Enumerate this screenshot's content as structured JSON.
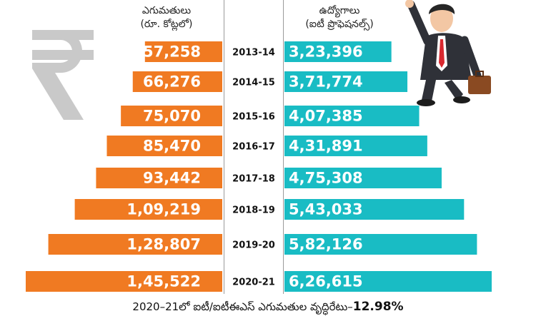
{
  "headers": {
    "left": [
      "ఎగుమతులు",
      "(రూ. కోట్లలో)"
    ],
    "right": [
      "ఉద్యోగాలు",
      "(ఐటీ ప్రొఫెషనల్స్)"
    ]
  },
  "footer": {
    "text": "2020–21లో ఐటీ/ఐటీఈఎస్ ఎగుమతుల వృద్ధిరేటు–",
    "value": "12.98%"
  },
  "colors": {
    "exports_bar": "#f07a22",
    "jobs_bar": "#19bcc4",
    "bar_text": "#ffffff",
    "year_text": "#111111",
    "rupee": "#c9c9c9"
  },
  "icons": [
    "rupee-icon",
    "jumping-businessman-illustration"
  ],
  "chart_data": {
    "type": "bar",
    "categories": [
      "2013-14",
      "2014-15",
      "2015-16",
      "2016-17",
      "2017-18",
      "2018-19",
      "2019-20",
      "2020-21"
    ],
    "series": [
      {
        "values": [
          57258,
          66276,
          75070,
          85470,
          93442,
          109219,
          128807,
          145522
        ],
        "labels": [
          "57,258",
          "66,276",
          "75,070",
          "85,470",
          "93,442",
          "1,09,219",
          "1,28,807",
          "1,45,522"
        ]
      },
      {
        "values": [
          323396,
          371774,
          407385,
          431891,
          475308,
          543033,
          582126,
          626615
        ],
        "labels": [
          "3,23,396",
          "3,71,774",
          "4,07,385",
          "4,31,891",
          "4,75,308",
          "5,43,033",
          "5,82,126",
          "6,26,615"
        ]
      }
    ],
    "legend": "none",
    "grid": false
  }
}
